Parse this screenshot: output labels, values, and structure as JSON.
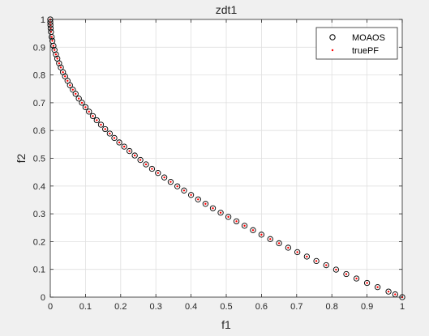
{
  "figure": {
    "background": "#f0f0f0"
  },
  "chart_data": {
    "type": "scatter",
    "title": "zdt1",
    "xlabel": "f1",
    "ylabel": "f2",
    "xlim": [
      0,
      1
    ],
    "ylim": [
      0,
      1
    ],
    "xticks": [
      "0",
      "0.1",
      "0.2",
      "0.3",
      "0.4",
      "0.5",
      "0.6",
      "0.7",
      "0.8",
      "0.9",
      "1"
    ],
    "yticks": [
      "0",
      "0.1",
      "0.2",
      "0.3",
      "0.4",
      "0.5",
      "0.6",
      "0.7",
      "0.8",
      "0.9",
      "1"
    ],
    "grid": true,
    "legend_position": "top-right",
    "series": [
      {
        "name": "MOAOS",
        "marker": "open-circle",
        "color": "#000000",
        "function": "y = 1 - sqrt(x)",
        "points": 100,
        "x": [
          0.0,
          0.0001,
          0.0004,
          0.001,
          0.002,
          0.004,
          0.006,
          0.009,
          0.012,
          0.016,
          0.02,
          0.025,
          0.03,
          0.036,
          0.042,
          0.049,
          0.056,
          0.064,
          0.072,
          0.081,
          0.09,
          0.1,
          0.11,
          0.121,
          0.132,
          0.144,
          0.156,
          0.169,
          0.182,
          0.196,
          0.21,
          0.225,
          0.24,
          0.256,
          0.272,
          0.289,
          0.306,
          0.324,
          0.342,
          0.361,
          0.38,
          0.4,
          0.42,
          0.441,
          0.462,
          0.484,
          0.506,
          0.529,
          0.552,
          0.576,
          0.6,
          0.625,
          0.65,
          0.676,
          0.702,
          0.729,
          0.756,
          0.784,
          0.812,
          0.841,
          0.87,
          0.9,
          0.93,
          0.961,
          0.98,
          1.0
        ],
        "y": [
          1.0,
          0.99,
          0.98,
          0.968,
          0.955,
          0.937,
          0.923,
          0.905,
          0.89,
          0.874,
          0.859,
          0.842,
          0.827,
          0.81,
          0.795,
          0.779,
          0.763,
          0.747,
          0.732,
          0.715,
          0.7,
          0.684,
          0.668,
          0.652,
          0.637,
          0.621,
          0.605,
          0.589,
          0.573,
          0.557,
          0.542,
          0.526,
          0.51,
          0.494,
          0.478,
          0.462,
          0.447,
          0.431,
          0.415,
          0.399,
          0.384,
          0.368,
          0.352,
          0.336,
          0.32,
          0.304,
          0.289,
          0.273,
          0.257,
          0.241,
          0.225,
          0.209,
          0.194,
          0.178,
          0.162,
          0.146,
          0.13,
          0.115,
          0.099,
          0.083,
          0.067,
          0.051,
          0.036,
          0.02,
          0.01,
          0.0
        ]
      },
      {
        "name": "truePF",
        "marker": "dot",
        "color": "#ff0000",
        "function": "y = 1 - sqrt(x)",
        "points": 300,
        "x": [
          0.0,
          0.0001,
          0.0004,
          0.001,
          0.002,
          0.004,
          0.006,
          0.009,
          0.012,
          0.016,
          0.02,
          0.025,
          0.03,
          0.036,
          0.042,
          0.049,
          0.056,
          0.064,
          0.072,
          0.081,
          0.09,
          0.1,
          0.11,
          0.121,
          0.132,
          0.144,
          0.156,
          0.169,
          0.182,
          0.196,
          0.21,
          0.225,
          0.24,
          0.256,
          0.272,
          0.289,
          0.306,
          0.324,
          0.342,
          0.361,
          0.38,
          0.4,
          0.42,
          0.441,
          0.462,
          0.484,
          0.506,
          0.529,
          0.552,
          0.576,
          0.6,
          0.625,
          0.65,
          0.676,
          0.702,
          0.729,
          0.756,
          0.784,
          0.812,
          0.841,
          0.87,
          0.9,
          0.93,
          0.961,
          0.98,
          1.0
        ],
        "y": [
          1.0,
          0.99,
          0.98,
          0.968,
          0.955,
          0.937,
          0.923,
          0.905,
          0.89,
          0.874,
          0.859,
          0.842,
          0.827,
          0.81,
          0.795,
          0.779,
          0.763,
          0.747,
          0.732,
          0.715,
          0.7,
          0.684,
          0.668,
          0.652,
          0.637,
          0.621,
          0.605,
          0.589,
          0.573,
          0.557,
          0.542,
          0.526,
          0.51,
          0.494,
          0.478,
          0.462,
          0.447,
          0.431,
          0.415,
          0.399,
          0.384,
          0.368,
          0.352,
          0.336,
          0.32,
          0.304,
          0.289,
          0.273,
          0.257,
          0.241,
          0.225,
          0.209,
          0.194,
          0.178,
          0.162,
          0.146,
          0.13,
          0.115,
          0.099,
          0.083,
          0.067,
          0.051,
          0.036,
          0.02,
          0.01,
          0.0
        ]
      }
    ]
  }
}
